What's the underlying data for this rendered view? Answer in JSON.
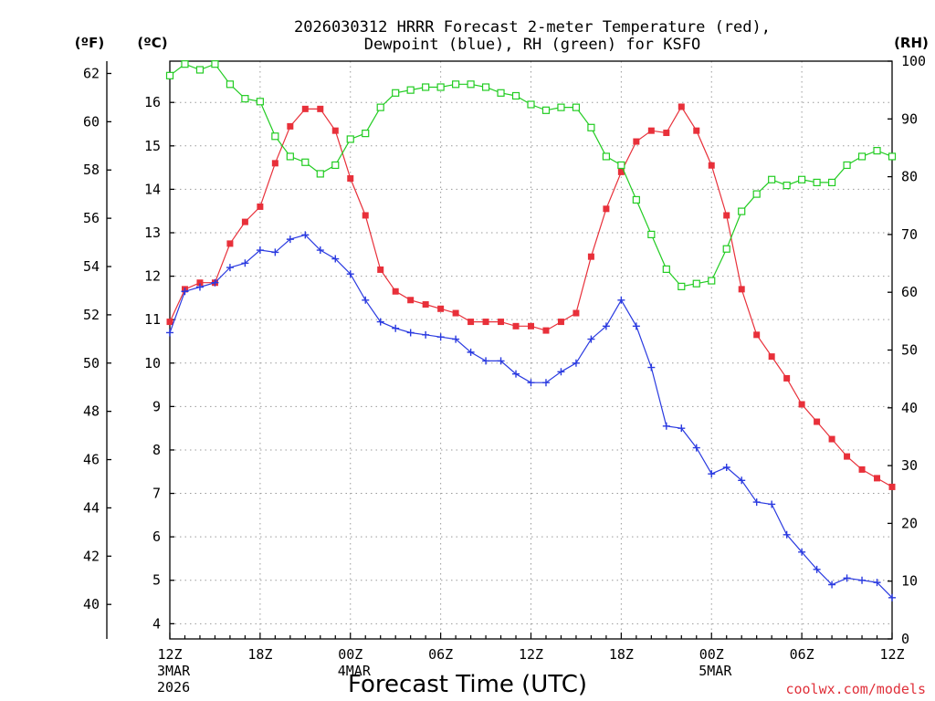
{
  "chart_data": {
    "type": "line",
    "title_line1": "2026030312 HRRR Forecast 2-meter Temperature (red),",
    "title_line2": "Dewpoint (blue), RH (green) for KSFO",
    "xlabel": "Forecast Time (UTC)",
    "unit_f": "(ºF)",
    "unit_c": "(ºC)",
    "unit_rh": "(RH)",
    "credit": "coolwx.com/models",
    "x_hours": [
      0,
      1,
      2,
      3,
      4,
      5,
      6,
      7,
      8,
      9,
      10,
      11,
      12,
      13,
      14,
      15,
      16,
      17,
      18,
      19,
      20,
      21,
      22,
      23,
      24,
      25,
      26,
      27,
      28,
      29,
      30,
      31,
      32,
      33,
      34,
      35,
      36,
      37,
      38,
      39,
      40,
      41,
      42,
      43,
      44,
      45,
      46,
      47,
      48
    ],
    "x_ticks": [
      {
        "hour": 0,
        "label": "12Z",
        "sub1": "3MAR",
        "sub2": "2026"
      },
      {
        "hour": 6,
        "label": "18Z",
        "sub1": "",
        "sub2": ""
      },
      {
        "hour": 12,
        "label": "00Z",
        "sub1": "4MAR",
        "sub2": ""
      },
      {
        "hour": 18,
        "label": "06Z",
        "sub1": "",
        "sub2": ""
      },
      {
        "hour": 24,
        "label": "12Z",
        "sub1": "",
        "sub2": ""
      },
      {
        "hour": 30,
        "label": "18Z",
        "sub1": "",
        "sub2": ""
      },
      {
        "hour": 36,
        "label": "00Z",
        "sub1": "5MAR",
        "sub2": ""
      },
      {
        "hour": 42,
        "label": "06Z",
        "sub1": "",
        "sub2": ""
      },
      {
        "hour": 48,
        "label": "12Z",
        "sub1": "",
        "sub2": ""
      }
    ],
    "y_c_range": [
      3.65,
      16.95
    ],
    "y_c_ticks": [
      4,
      5,
      6,
      7,
      8,
      9,
      10,
      11,
      12,
      13,
      14,
      15,
      16
    ],
    "y_f_ticks": [
      40,
      42,
      44,
      46,
      48,
      50,
      52,
      54,
      56,
      58,
      60,
      62
    ],
    "y_rh_range": [
      0,
      100
    ],
    "y_rh_ticks": [
      0,
      10,
      20,
      30,
      40,
      50,
      60,
      70,
      80,
      90,
      100
    ],
    "grid": true,
    "series": [
      {
        "name": "Temperature",
        "unit": "C",
        "color": "#e8303a",
        "marker": "filled-square",
        "values": [
          10.95,
          11.7,
          11.85,
          11.85,
          12.75,
          13.25,
          13.6,
          14.6,
          15.45,
          15.85,
          15.85,
          15.35,
          14.25,
          13.4,
          12.15,
          11.65,
          11.45,
          11.35,
          11.25,
          11.15,
          10.95,
          10.95,
          10.95,
          10.85,
          10.85,
          10.75,
          10.95,
          11.15,
          12.45,
          13.55,
          14.4,
          15.1,
          15.35,
          15.3,
          15.9,
          15.35,
          14.55,
          13.4,
          11.7,
          10.65,
          10.15,
          9.65,
          9.05,
          8.65,
          8.25,
          7.85,
          7.55,
          7.35,
          7.15
        ]
      },
      {
        "name": "Dewpoint",
        "unit": "C",
        "color": "#2a3ae0",
        "marker": "plus",
        "values": [
          10.7,
          11.65,
          11.75,
          11.85,
          12.2,
          12.3,
          12.6,
          12.55,
          12.85,
          12.95,
          12.6,
          12.4,
          12.05,
          11.45,
          10.95,
          10.8,
          10.7,
          10.65,
          10.6,
          10.55,
          10.25,
          10.05,
          10.05,
          9.75,
          9.55,
          9.55,
          9.8,
          10.0,
          10.55,
          10.85,
          11.45,
          10.85,
          9.9,
          8.55,
          8.5,
          8.05,
          7.45,
          7.6,
          7.3,
          6.8,
          6.75,
          6.05,
          5.65,
          5.25,
          4.9,
          5.05,
          5.0,
          4.95,
          4.6
        ]
      },
      {
        "name": "RH",
        "unit": "%",
        "color": "#22cc22",
        "marker": "open-square",
        "values": [
          97.5,
          99.5,
          98.5,
          99.5,
          96,
          93.5,
          93,
          87,
          83.5,
          82.5,
          80.5,
          82,
          86.5,
          87.5,
          92,
          94.5,
          95,
          95.5,
          95.5,
          96,
          96,
          95.5,
          94.5,
          94,
          92.5,
          91.5,
          92,
          92,
          88.5,
          83.5,
          82,
          76,
          70,
          64,
          61,
          61.5,
          62,
          67.5,
          74,
          77,
          79.5,
          78.5,
          79.5,
          79,
          79,
          82,
          83.5,
          84.5,
          83.5
        ]
      }
    ]
  }
}
